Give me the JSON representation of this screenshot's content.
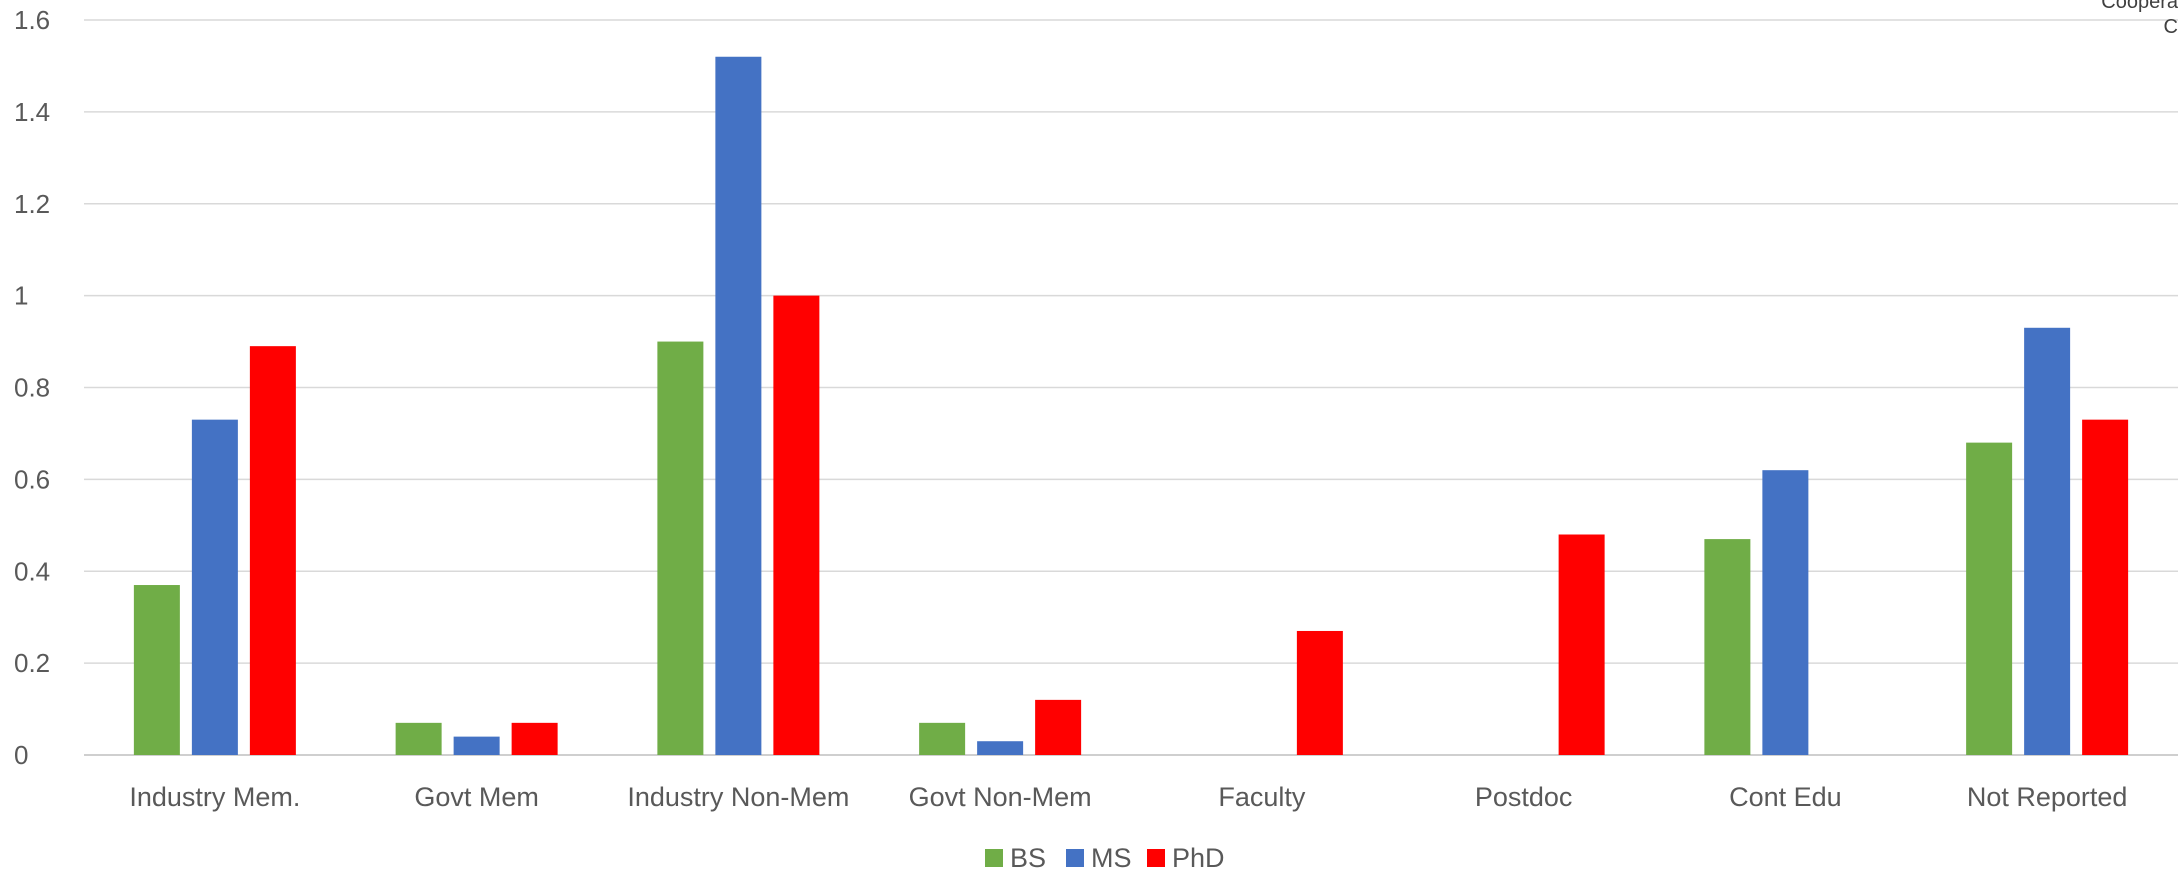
{
  "chart_data": {
    "type": "bar",
    "categories": [
      "Industry Mem.",
      "Govt Mem",
      "Industry Non-Mem",
      "Govt Non-Mem",
      "Faculty",
      "Postdoc",
      "Cont Edu",
      "Not Reported"
    ],
    "series": [
      {
        "name": "BS",
        "color": "#70AD47",
        "values": [
          0.37,
          0.07,
          0.9,
          0.07,
          0,
          0,
          0.47,
          0.68
        ]
      },
      {
        "name": "MS",
        "color": "#4472C4",
        "values": [
          0.73,
          0.04,
          1.52,
          0.03,
          0,
          0,
          0.62,
          0.93
        ]
      },
      {
        "name": "PhD",
        "color": "#FF0000",
        "values": [
          0.89,
          0.07,
          1.0,
          0.12,
          0.27,
          0.48,
          0,
          0.73
        ]
      }
    ],
    "yticks": [
      "0",
      "0.2",
      "0.4",
      "0.6",
      "0.8",
      "1",
      "1.2",
      "1.4",
      "1.6"
    ],
    "ylim": [
      0,
      1.6
    ],
    "grid": true,
    "legend_position": "bottom-center",
    "corner_text": [
      "Coopera",
      "C"
    ]
  }
}
